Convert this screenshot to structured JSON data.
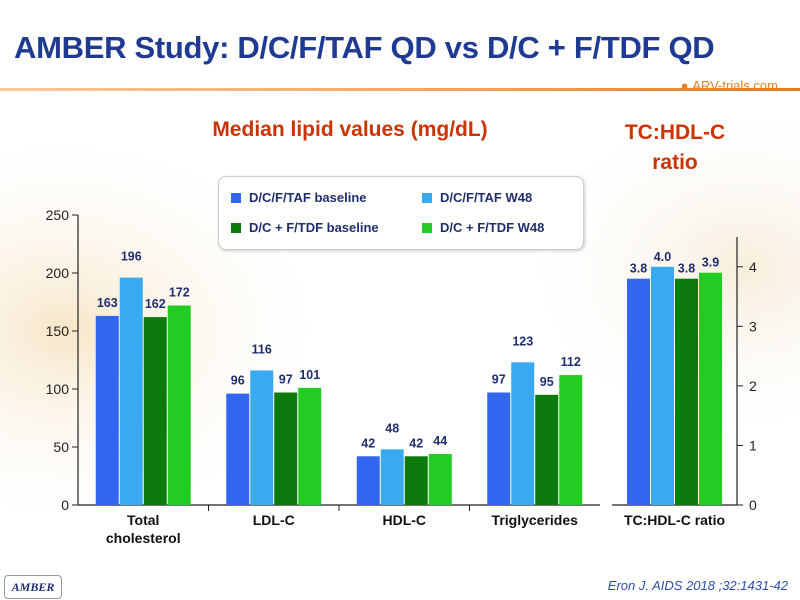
{
  "title": "AMBER Study: D/C/F/TAF QD vs D/C + F/TDF QD",
  "brand": {
    "text": "ARV-trials.com"
  },
  "footer_badge": "AMBER",
  "citation": "Eron J. AIDS 2018 ;32:1431-42",
  "colors": {
    "title": "#1f3a93",
    "subheading": "#cc3300",
    "series": [
      "#3366ee",
      "#3aaaf0",
      "#0d7a0d",
      "#22cc22"
    ]
  },
  "chart_data": [
    {
      "type": "bar",
      "title": "Median lipid values (mg/dL)",
      "categories": [
        "Total cholesterol",
        "LDL-C",
        "HDL-C",
        "Triglycerides"
      ],
      "series": [
        {
          "name": "D/C/F/TAF baseline",
          "values": [
            163,
            96,
            42,
            97
          ]
        },
        {
          "name": "D/C/F/TAF W48",
          "values": [
            196,
            116,
            48,
            123
          ]
        },
        {
          "name": "D/C + F/TDF baseline",
          "values": [
            162,
            97,
            42,
            95
          ]
        },
        {
          "name": "D/C + F/TDF W48",
          "values": [
            172,
            101,
            44,
            112
          ]
        }
      ],
      "yticks": [
        0,
        50,
        100,
        150,
        200,
        250
      ],
      "ylim": [
        0,
        250
      ],
      "legend": "top-center",
      "grid": false
    },
    {
      "type": "bar",
      "title": "TC:HDL-C ratio",
      "categories": [
        "TC:HDL-C ratio"
      ],
      "series": [
        {
          "name": "D/C/F/TAF baseline",
          "values": [
            3.8
          ]
        },
        {
          "name": "D/C/F/TAF W48",
          "values": [
            4.0
          ]
        },
        {
          "name": "D/C + F/TDF baseline",
          "values": [
            3.8
          ]
        },
        {
          "name": "D/C + F/TDF W48",
          "values": [
            3.9
          ]
        }
      ],
      "value_labels": [
        "3.8",
        "4.0",
        "3.8",
        "3.9"
      ],
      "yticks": [
        0,
        1,
        2,
        3,
        4
      ],
      "ylim": [
        0,
        4.5
      ],
      "y_axis_side": "right",
      "grid": false
    }
  ]
}
